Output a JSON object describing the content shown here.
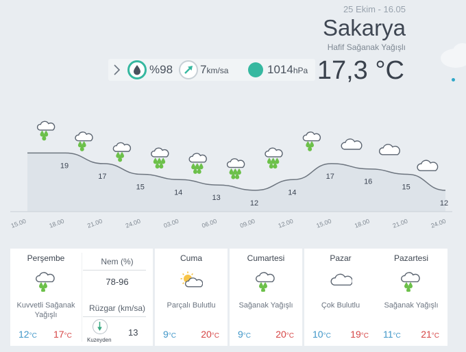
{
  "header": {
    "date": "25 Ekim - 16.05",
    "city": "Sakarya",
    "condition": "Hafif Sağanak Yağışlı",
    "temperature": "17,3 °C"
  },
  "stats": {
    "humidity": "%98",
    "wind_value": "7",
    "wind_unit": "km/sa",
    "pressure_value": "1014",
    "pressure_unit": "hPa"
  },
  "colors": {
    "accent": "#36b8a0",
    "rain": "#6cc04a",
    "low": "#3f96c8",
    "high": "#d64545"
  },
  "chart_data": {
    "type": "area",
    "x": [
      "15.00",
      "18.00",
      "21.00",
      "24.00",
      "03.00",
      "06.00",
      "09.00",
      "12.00",
      "15.00",
      "18.00",
      "21.00",
      "24.00"
    ],
    "temperature_labels": [
      "19",
      "17",
      "15",
      "14",
      "13",
      "12",
      "14",
      "17",
      "16",
      "15",
      "12"
    ],
    "temperature": [
      19,
      19,
      17,
      15,
      14,
      13,
      12,
      14,
      17,
      16,
      15,
      12
    ],
    "icons": [
      "rain-cloud-icon",
      "rain-cloud-icon",
      "rain-cloud-icon",
      "heavy-rain-icon",
      "heavy-rain-icon",
      "heavy-rain-icon",
      "heavy-rain-icon",
      "rain-cloud-icon",
      "cloud-icon",
      "cloud-icon",
      "cloud-icon"
    ]
  },
  "today": {
    "day": "Perşembe",
    "icon": "rain-cloud-icon",
    "desc_line1": "Kuvvetli Sağanak",
    "desc_line2": "Yağışlı",
    "low": "12",
    "high": "17",
    "unit": "°C",
    "humidity_label": "Nem (%)",
    "humidity_value": "78-96",
    "wind_label": "Rüzgar (km/sa)",
    "wind_dir": "Kuzeyden",
    "wind_value": "13"
  },
  "forecast": [
    {
      "day": "Cuma",
      "icon": "partly-cloudy-icon",
      "desc": "Parçalı Bulutlu",
      "low": "9",
      "high": "20"
    },
    {
      "day": "Cumartesi",
      "icon": "rain-cloud-icon",
      "desc": "Sağanak Yağışlı",
      "low": "9",
      "high": "20"
    },
    {
      "day": "Pazar",
      "icon": "cloud-icon",
      "desc": "Çok Bulutlu",
      "low": "10",
      "high": "19"
    },
    {
      "day": "Pazartesi",
      "icon": "rain-cloud-icon",
      "desc": "Sağanak Yağışlı",
      "low": "11",
      "high": "21"
    }
  ]
}
